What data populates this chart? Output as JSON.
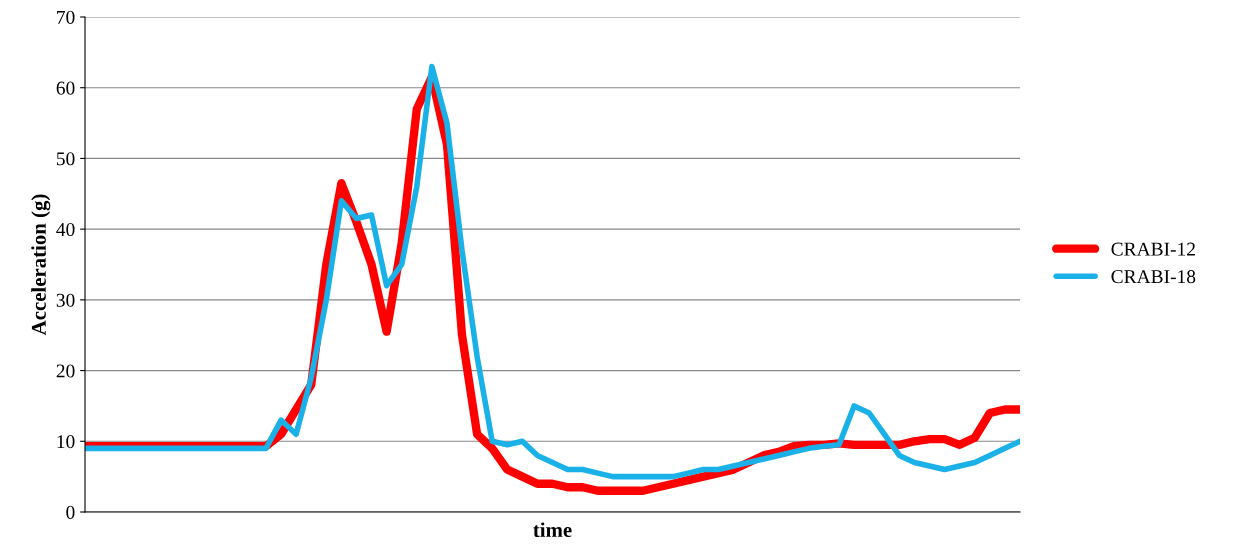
{
  "chart_data": {
    "type": "line",
    "xlabel": "time",
    "ylabel": "Acceleration (g)",
    "categories": [
      null,
      null,
      null,
      null,
      null,
      null,
      null,
      null,
      null,
      null,
      null,
      null,
      null,
      null,
      null,
      null,
      null,
      null,
      null,
      null,
      null,
      null,
      null,
      null,
      null,
      null,
      null,
      null,
      null,
      null,
      null,
      null,
      null,
      null,
      null,
      null,
      null,
      null,
      null,
      null,
      null,
      null,
      null,
      null,
      null,
      null,
      null,
      null,
      null,
      null,
      null,
      null,
      null,
      null,
      null,
      null,
      null,
      null,
      null,
      null,
      null,
      null,
      null
    ],
    "series": [
      {
        "name": "CRABI-12",
        "color": "#ff0000",
        "values": [
          9.3,
          9.3,
          9.3,
          9.3,
          9.3,
          9.3,
          9.3,
          9.3,
          9.3,
          9.3,
          9.3,
          9.3,
          9.3,
          11,
          14.5,
          18,
          35,
          46.5,
          41,
          35,
          25.5,
          38,
          57,
          61.5,
          52,
          25,
          11,
          9,
          6,
          5,
          4,
          4,
          3.5,
          3.5,
          3,
          3,
          3,
          3,
          3.5,
          4,
          4.5,
          5,
          5.5,
          6,
          7,
          8,
          8.5,
          9.3,
          9.5,
          9.5,
          9.7,
          9.5,
          9.5,
          9.5,
          9.5,
          10,
          10.3,
          10.3,
          9.5,
          10.5,
          14,
          14.5,
          14.5
        ]
      },
      {
        "name": "CRABI-18",
        "color": "#1ab0e8",
        "values": [
          9,
          9,
          9,
          9,
          9,
          9,
          9,
          9,
          9,
          9,
          9,
          9,
          9,
          13,
          11,
          19,
          30,
          44,
          41.5,
          42,
          32,
          35,
          46,
          63,
          55,
          37,
          22,
          10,
          9.5,
          10,
          8,
          7,
          6,
          6,
          5.5,
          5,
          5,
          5,
          5,
          5,
          5.5,
          6,
          6,
          6.5,
          7,
          7.5,
          8,
          8.5,
          9,
          9.3,
          9.5,
          15,
          14,
          11,
          8,
          7,
          6.5,
          6,
          6.5,
          7,
          8,
          9,
          10
        ]
      }
    ],
    "ylim": [
      0,
      70
    ],
    "yticks": [
      0,
      10,
      20,
      30,
      40,
      50,
      60,
      70
    ],
    "grid": "y",
    "legend": "right",
    "marker": "none",
    "line_style": "solid"
  }
}
